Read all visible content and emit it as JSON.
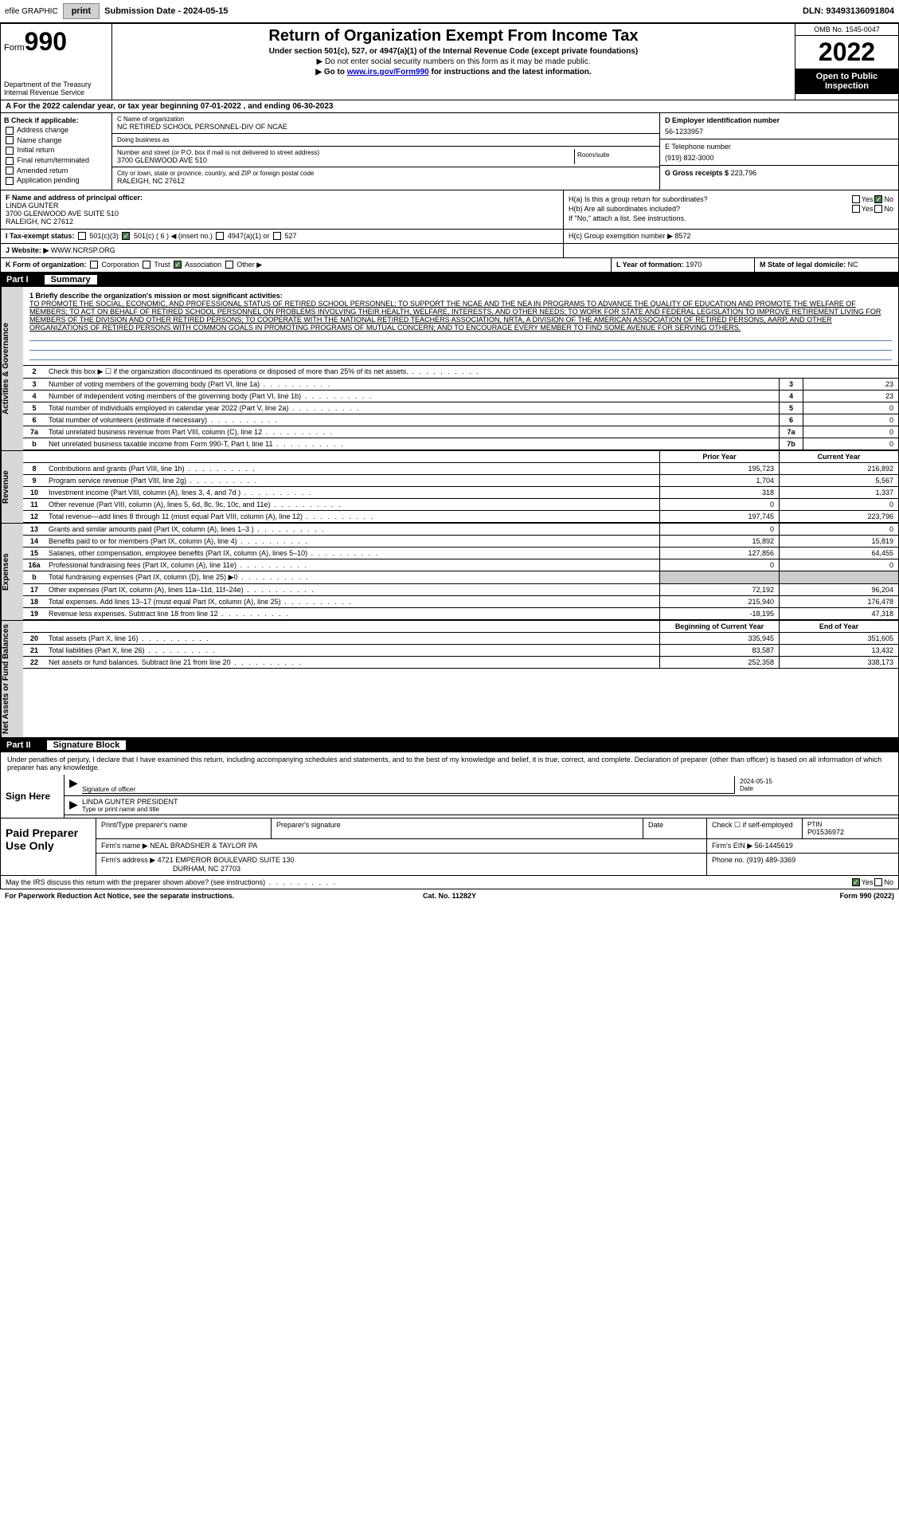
{
  "topbar": {
    "efile": "efile GRAPHIC",
    "print": "print",
    "subdate_lbl": "Submission Date - 2024-05-15",
    "dln": "DLN: 93493136091804"
  },
  "header": {
    "form_word": "Form",
    "form_num": "990",
    "dept": "Department of the Treasury",
    "irs": "Internal Revenue Service",
    "title": "Return of Organization Exempt From Income Tax",
    "sub1": "Under section 501(c), 527, or 4947(a)(1) of the Internal Revenue Code (except private foundations)",
    "sub2": "▶ Do not enter social security numbers on this form as it may be made public.",
    "sub3_pre": "▶ Go to ",
    "sub3_link": "www.irs.gov/Form990",
    "sub3_post": " for instructions and the latest information.",
    "omb": "OMB No. 1545-0047",
    "year": "2022",
    "open": "Open to Public Inspection"
  },
  "taxyear": "A For the 2022 calendar year, or tax year beginning 07-01-2022 , and ending 06-30-2023",
  "boxB": {
    "title": "B Check if applicable:",
    "items": [
      "Address change",
      "Name change",
      "Initial return",
      "Final return/terminated",
      "Amended return",
      "Application pending"
    ]
  },
  "boxC": {
    "lbl_name": "C Name of organization",
    "org": "NC RETIRED SCHOOL PERSONNEL-DIV OF NCAE",
    "dba_lbl": "Doing business as",
    "dba": "",
    "addr_lbl": "Number and street (or P.O. box if mail is not delivered to street address)",
    "addr": "3700 GLENWOOD AVE 510",
    "room_lbl": "Room/suite",
    "city_lbl": "City or town, state or province, country, and ZIP or foreign postal code",
    "city": "RALEIGH, NC  27612"
  },
  "boxD": {
    "lbl": "D Employer identification number",
    "val": "56-1233957"
  },
  "boxE": {
    "lbl": "E Telephone number",
    "val": "(919) 832-3000"
  },
  "boxG": {
    "lbl": "G Gross receipts $",
    "val": "223,796"
  },
  "boxF": {
    "lbl": "F Name and address of principal officer:",
    "name": "LINDA GUNTER",
    "addr1": "3700 GLENWOOD AVE SUITE 510",
    "addr2": "RALEIGH, NC  27612"
  },
  "boxH": {
    "ha": "H(a)  Is this a group return for subordinates?",
    "hb": "H(b)  Are all subordinates included?",
    "hb_note": "If \"No,\" attach a list. See instructions.",
    "hc": "H(c)  Group exemption number ▶",
    "hc_val": "8572",
    "yes": "Yes",
    "no": "No"
  },
  "boxI": {
    "lbl": "I   Tax-exempt status:",
    "c3": "501(c)(3)",
    "c": "501(c) ( 6 ) ◀ (insert no.)",
    "a4947": "4947(a)(1) or",
    "s527": "527"
  },
  "boxJ": {
    "lbl": "J  Website: ▶",
    "val": "WWW.NCRSP.ORG"
  },
  "boxK": {
    "lbl": "K Form of organization:",
    "corp": "Corporation",
    "trust": "Trust",
    "assoc": "Association",
    "other": "Other ▶"
  },
  "boxL": {
    "lbl": "L Year of formation:",
    "val": "1970"
  },
  "boxM": {
    "lbl": "M State of legal domicile:",
    "val": "NC"
  },
  "part1": {
    "label": "Part I",
    "title": "Summary"
  },
  "vtabs": {
    "ag": "Activities & Governance",
    "rev": "Revenue",
    "exp": "Expenses",
    "na": "Net Assets or Fund Balances"
  },
  "mission": {
    "lbl": "1   Briefly describe the organization's mission or most significant activities:",
    "text": "TO PROMOTE THE SOCIAL, ECONOMIC, AND PROFESSIONAL STATUS OF RETIRED SCHOOL PERSONNEL; TO SUPPORT THE NCAE AND THE NEA IN PROGRAMS TO ADVANCE THE QUALITY OF EDUCATION AND PROMOTE THE WELFARE OF MEMBERS; TO ACT ON BEHALF OF RETIRED SCHOOL PERSONNEL ON PROBLEMS INVOLVING THEIR HEALTH, WELFARE, INTERESTS, AND OTHER NEEDS; TO WORK FOR STATE AND FEDERAL LEGISLATION TO IMPROVE RETIREMENT LIVING FOR MEMBERS OF THE DIVISION AND OTHER RETIRED PERSONS; TO COOPERATE WITH THE NATIONAL RETIRED TEACHERS ASSOCIATION, NRTA, A DIVISION OF THE AMERICAN ASSOCIATION OF RETIRED PERSONS, AARP, AND OTHER ORGANIZATIONS OF RETIRED PERSONS WITH COMMON GOALS IN PROMOTING PROGRAMS OF MUTUAL CONCERN; AND TO ENCOURAGE EVERY MEMBER TO FIND SOME AVENUE FOR SERVING OTHERS."
  },
  "ag_rows": [
    {
      "n": "2",
      "t": "Check this box ▶ ☐ if the organization discontinued its operations or disposed of more than 25% of its net assets.",
      "box": "",
      "v": ""
    },
    {
      "n": "3",
      "t": "Number of voting members of the governing body (Part VI, line 1a)",
      "box": "3",
      "v": "23"
    },
    {
      "n": "4",
      "t": "Number of independent voting members of the governing body (Part VI, line 1b)",
      "box": "4",
      "v": "23"
    },
    {
      "n": "5",
      "t": "Total number of individuals employed in calendar year 2022 (Part V, line 2a)",
      "box": "5",
      "v": "0"
    },
    {
      "n": "6",
      "t": "Total number of volunteers (estimate if necessary)",
      "box": "6",
      "v": "0"
    },
    {
      "n": "7a",
      "t": "Total unrelated business revenue from Part VIII, column (C), line 12",
      "box": "7a",
      "v": "0"
    },
    {
      "n": "b",
      "t": "Net unrelated business taxable income from Form 990-T, Part I, line 11",
      "box": "7b",
      "v": "0"
    }
  ],
  "col_head": {
    "prior": "Prior Year",
    "current": "Current Year"
  },
  "rev_rows": [
    {
      "n": "8",
      "t": "Contributions and grants (Part VIII, line 1h)",
      "p": "195,723",
      "c": "216,892"
    },
    {
      "n": "9",
      "t": "Program service revenue (Part VIII, line 2g)",
      "p": "1,704",
      "c": "5,567"
    },
    {
      "n": "10",
      "t": "Investment income (Part VIII, column (A), lines 3, 4, and 7d )",
      "p": "318",
      "c": "1,337"
    },
    {
      "n": "11",
      "t": "Other revenue (Part VIII, column (A), lines 5, 6d, 8c, 9c, 10c, and 11e)",
      "p": "0",
      "c": "0"
    },
    {
      "n": "12",
      "t": "Total revenue—add lines 8 through 11 (must equal Part VIII, column (A), line 12)",
      "p": "197,745",
      "c": "223,796"
    }
  ],
  "exp_rows": [
    {
      "n": "13",
      "t": "Grants and similar amounts paid (Part IX, column (A), lines 1–3 )",
      "p": "0",
      "c": "0"
    },
    {
      "n": "14",
      "t": "Benefits paid to or for members (Part IX, column (A), line 4)",
      "p": "15,892",
      "c": "15,819"
    },
    {
      "n": "15",
      "t": "Salaries, other compensation, employee benefits (Part IX, column (A), lines 5–10)",
      "p": "127,856",
      "c": "64,455"
    },
    {
      "n": "16a",
      "t": "Professional fundraising fees (Part IX, column (A), line 11e)",
      "p": "0",
      "c": "0"
    },
    {
      "n": "b",
      "t": "Total fundraising expenses (Part IX, column (D), line 25) ▶0",
      "p": "",
      "c": "",
      "shade": true
    },
    {
      "n": "17",
      "t": "Other expenses (Part IX, column (A), lines 11a–11d, 11f–24e)",
      "p": "72,192",
      "c": "96,204"
    },
    {
      "n": "18",
      "t": "Total expenses. Add lines 13–17 (must equal Part IX, column (A), line 25)",
      "p": "215,940",
      "c": "176,478"
    },
    {
      "n": "19",
      "t": "Revenue less expenses. Subtract line 18 from line 12",
      "p": "-18,195",
      "c": "47,318"
    }
  ],
  "na_head": {
    "b": "Beginning of Current Year",
    "e": "End of Year"
  },
  "na_rows": [
    {
      "n": "20",
      "t": "Total assets (Part X, line 16)",
      "p": "335,945",
      "c": "351,605"
    },
    {
      "n": "21",
      "t": "Total liabilities (Part X, line 26)",
      "p": "83,587",
      "c": "13,432"
    },
    {
      "n": "22",
      "t": "Net assets or fund balances. Subtract line 21 from line 20",
      "p": "252,358",
      "c": "338,173"
    }
  ],
  "part2": {
    "label": "Part II",
    "title": "Signature Block"
  },
  "sig": {
    "decl": "Under penalties of perjury, I declare that I have examined this return, including accompanying schedules and statements, and to the best of my knowledge and belief, it is true, correct, and complete. Declaration of preparer (other than officer) is based on all information of which preparer has any knowledge.",
    "sign_here": "Sign Here",
    "sig_lbl": "Signature of officer",
    "date": "2024-05-15",
    "date_lbl": "Date",
    "name": "LINDA GUNTER  PRESIDENT",
    "name_lbl": "Type or print name and title"
  },
  "prep": {
    "title": "Paid Preparer Use Only",
    "h1": "Print/Type preparer's name",
    "h2": "Preparer's signature",
    "h3": "Date",
    "h4": "Check ☐ if self-employed",
    "h5_lbl": "PTIN",
    "h5": "P01536972",
    "firm_lbl": "Firm's name    ▶",
    "firm": "NEAL BRADSHER & TAYLOR PA",
    "ein_lbl": "Firm's EIN ▶",
    "ein": "56-1445619",
    "addr_lbl": "Firm's address ▶",
    "addr1": "4721 EMPEROR BOULEVARD SUITE 130",
    "addr2": "DURHAM, NC  27703",
    "phone_lbl": "Phone no.",
    "phone": "(919) 489-3369"
  },
  "discuss": {
    "q": "May the IRS discuss this return with the preparer shown above? (see instructions)",
    "yes": "Yes",
    "no": "No"
  },
  "footer": {
    "l": "For Paperwork Reduction Act Notice, see the separate instructions.",
    "c": "Cat. No. 11282Y",
    "r": "Form 990 (2022)"
  }
}
